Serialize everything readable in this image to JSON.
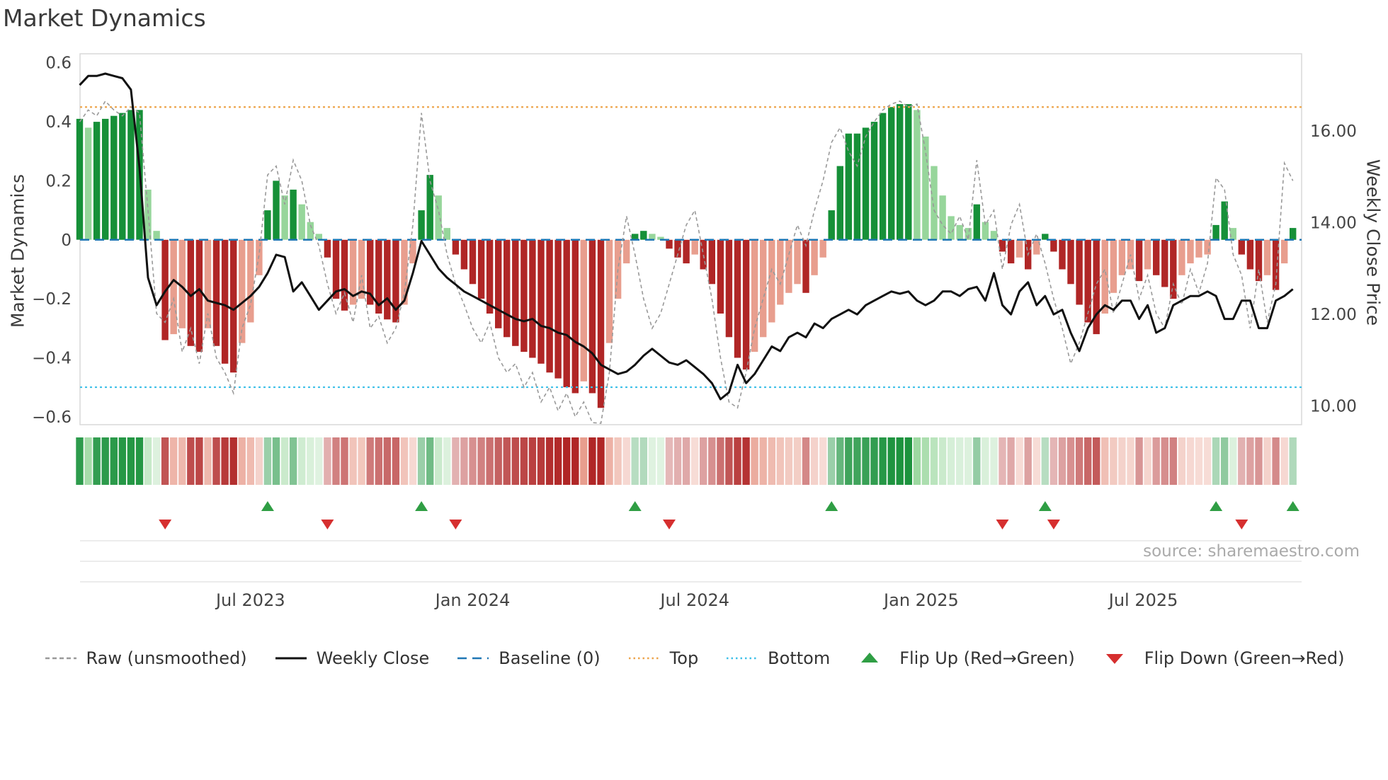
{
  "title": "Market Dynamics",
  "source": "source: sharemaestro.com",
  "colors": {
    "bar_up_strong": "#169038",
    "bar_up_weak": "#97d69b",
    "bar_down_strong": "#b02626",
    "bar_down_weak": "#e89e8e",
    "weekly_close": "#111111",
    "raw": "#999999",
    "baseline": "#1f77b4",
    "top": "#eda54c",
    "bottom": "#3fc0e8",
    "flip_up": "#2f9e44",
    "flip_down": "#d62f2f",
    "frame": "#d9d9d9",
    "grid": "#e6e6e6"
  },
  "legend": [
    {
      "label": "Raw (unsmoothed)",
      "symbol": "dashed-line",
      "icon": "raw-line-icon",
      "color_key": "raw"
    },
    {
      "label": "Weekly Close",
      "symbol": "solid-line",
      "icon": "weekly-close-line-icon",
      "color_key": "weekly_close"
    },
    {
      "label": "Baseline (0)",
      "symbol": "long-dash-line",
      "icon": "baseline-icon",
      "color_key": "baseline"
    },
    {
      "label": "Top",
      "symbol": "dotted-line",
      "icon": "top-line-icon",
      "color_key": "top"
    },
    {
      "label": "Bottom",
      "symbol": "dotted-line",
      "icon": "bottom-line-icon",
      "color_key": "bottom"
    },
    {
      "label": "Flip Up (Red→Green)",
      "symbol": "triangle-up",
      "icon": "flip-up-icon",
      "color_key": "flip_up"
    },
    {
      "label": "Flip Down (Green→Red)",
      "symbol": "triangle-down",
      "icon": "flip-down-icon",
      "color_key": "flip_down"
    }
  ],
  "chart_data": {
    "type": "combo",
    "components": [
      "bar",
      "line",
      "heatmap-strip",
      "flip-markers"
    ],
    "frequency": "weekly",
    "n_points": 143,
    "left_axis": {
      "label": "Market Dynamics",
      "tick_labels": [
        "0.6",
        "0.4",
        "0.2",
        "0",
        "−0.2",
        "−0.4",
        "−0.6"
      ],
      "tick_values": [
        0.6,
        0.4,
        0.2,
        0,
        -0.2,
        -0.4,
        -0.6
      ],
      "range": [
        -0.63,
        0.63
      ]
    },
    "right_axis": {
      "label": "Weekly Close Price",
      "tick_labels": [
        "16.00",
        "14.00",
        "12.00",
        "10.00"
      ],
      "tick_values": [
        16,
        14,
        12,
        10
      ],
      "range": [
        9.6,
        17.7
      ]
    },
    "x_ticks": [
      {
        "label": "Jul 2023",
        "week_index": 20
      },
      {
        "label": "Jan 2024",
        "week_index": 46
      },
      {
        "label": "Jul 2024",
        "week_index": 72
      },
      {
        "label": "Jan 2025",
        "week_index": 98.5
      },
      {
        "label": "Jul 2025",
        "week_index": 124.5
      }
    ],
    "reference_lines": {
      "baseline": 0,
      "top": 0.45,
      "bottom": -0.5
    },
    "series": {
      "oscillator": [
        0.41,
        0.38,
        0.4,
        0.41,
        0.42,
        0.43,
        0.44,
        0.44,
        0.17,
        0.03,
        -0.34,
        -0.32,
        -0.3,
        -0.36,
        -0.38,
        -0.3,
        -0.36,
        -0.42,
        -0.45,
        -0.35,
        -0.28,
        -0.12,
        0.1,
        0.2,
        0.15,
        0.17,
        0.12,
        0.06,
        0.02,
        -0.06,
        -0.2,
        -0.24,
        -0.22,
        -0.2,
        -0.22,
        -0.25,
        -0.27,
        -0.28,
        -0.22,
        -0.08,
        0.1,
        0.22,
        0.15,
        0.04,
        -0.05,
        -0.1,
        -0.15,
        -0.2,
        -0.25,
        -0.3,
        -0.33,
        -0.36,
        -0.38,
        -0.4,
        -0.42,
        -0.45,
        -0.47,
        -0.5,
        -0.52,
        -0.48,
        -0.52,
        -0.57,
        -0.35,
        -0.2,
        -0.08,
        0.02,
        0.03,
        0.02,
        0.01,
        -0.03,
        -0.06,
        -0.08,
        -0.05,
        -0.1,
        -0.15,
        -0.25,
        -0.33,
        -0.4,
        -0.44,
        -0.38,
        -0.33,
        -0.28,
        -0.22,
        -0.18,
        -0.15,
        -0.18,
        -0.12,
        -0.06,
        0.1,
        0.25,
        0.36,
        0.36,
        0.38,
        0.4,
        0.43,
        0.45,
        0.46,
        0.46,
        0.44,
        0.35,
        0.25,
        0.15,
        0.08,
        0.05,
        0.04,
        0.12,
        0.06,
        0.03,
        -0.04,
        -0.08,
        -0.06,
        -0.1,
        -0.05,
        0.02,
        -0.04,
        -0.1,
        -0.15,
        -0.22,
        -0.28,
        -0.32,
        -0.25,
        -0.18,
        -0.12,
        -0.1,
        -0.14,
        -0.1,
        -0.12,
        -0.16,
        -0.2,
        -0.12,
        -0.08,
        -0.06,
        -0.05,
        0.05,
        0.13,
        0.04,
        -0.05,
        -0.1,
        -0.14,
        -0.12,
        -0.17,
        -0.08,
        0.04
      ],
      "raw": [
        0.4,
        0.44,
        0.42,
        0.47,
        0.44,
        0.42,
        0.45,
        0.43,
        0.1,
        -0.25,
        -0.28,
        -0.2,
        -0.38,
        -0.3,
        -0.42,
        -0.25,
        -0.4,
        -0.45,
        -0.52,
        -0.3,
        -0.22,
        -0.05,
        0.22,
        0.25,
        0.12,
        0.27,
        0.2,
        0.05,
        -0.02,
        -0.15,
        -0.25,
        -0.18,
        -0.28,
        -0.12,
        -0.3,
        -0.26,
        -0.35,
        -0.3,
        -0.18,
        0.05,
        0.43,
        0.2,
        0.1,
        -0.05,
        -0.15,
        -0.22,
        -0.3,
        -0.35,
        -0.28,
        -0.4,
        -0.45,
        -0.42,
        -0.5,
        -0.45,
        -0.55,
        -0.5,
        -0.58,
        -0.52,
        -0.6,
        -0.55,
        -0.62,
        -0.65,
        -0.45,
        -0.1,
        0.08,
        -0.05,
        -0.2,
        -0.3,
        -0.25,
        -0.15,
        -0.05,
        0.05,
        0.1,
        -0.05,
        -0.2,
        -0.4,
        -0.55,
        -0.57,
        -0.45,
        -0.3,
        -0.2,
        -0.1,
        -0.15,
        -0.05,
        0.05,
        -0.02,
        0.1,
        0.2,
        0.33,
        0.38,
        0.3,
        0.25,
        0.35,
        0.4,
        0.44,
        0.46,
        0.47,
        0.45,
        0.46,
        0.3,
        0.1,
        0.05,
        0.02,
        0.08,
        0.0,
        0.27,
        0.05,
        0.1,
        -0.1,
        0.05,
        0.12,
        -0.05,
        0.02,
        -0.08,
        -0.2,
        -0.3,
        -0.42,
        -0.35,
        -0.25,
        -0.15,
        -0.1,
        -0.25,
        -0.15,
        -0.05,
        -0.2,
        -0.12,
        -0.25,
        -0.3,
        -0.15,
        -0.22,
        -0.1,
        -0.18,
        -0.08,
        0.21,
        0.17,
        -0.05,
        -0.12,
        -0.3,
        -0.1,
        -0.28,
        -0.15,
        0.26,
        0.2
      ],
      "weekly_close": [
        17.0,
        17.2,
        17.2,
        17.25,
        17.2,
        17.15,
        16.9,
        15.2,
        12.8,
        12.2,
        12.5,
        12.75,
        12.6,
        12.4,
        12.55,
        12.3,
        12.25,
        12.2,
        12.1,
        12.25,
        12.4,
        12.6,
        12.9,
        13.3,
        13.25,
        12.5,
        12.7,
        12.4,
        12.1,
        12.3,
        12.5,
        12.55,
        12.4,
        12.5,
        12.45,
        12.2,
        12.35,
        12.1,
        12.3,
        12.9,
        13.6,
        13.3,
        13.0,
        12.8,
        12.65,
        12.5,
        12.4,
        12.3,
        12.2,
        12.1,
        12.0,
        11.9,
        11.85,
        11.9,
        11.75,
        11.7,
        11.6,
        11.55,
        11.4,
        11.3,
        11.15,
        10.9,
        10.8,
        10.7,
        10.75,
        10.9,
        11.1,
        11.25,
        11.1,
        10.95,
        10.9,
        11.0,
        10.85,
        10.7,
        10.5,
        10.15,
        10.3,
        10.9,
        10.5,
        10.7,
        11.0,
        11.3,
        11.2,
        11.5,
        11.6,
        11.5,
        11.8,
        11.7,
        11.9,
        12.0,
        12.1,
        12.0,
        12.2,
        12.3,
        12.4,
        12.5,
        12.45,
        12.5,
        12.3,
        12.2,
        12.3,
        12.5,
        12.5,
        12.4,
        12.55,
        12.6,
        12.3,
        12.9,
        12.2,
        12.0,
        12.5,
        12.7,
        12.2,
        12.4,
        12.0,
        12.1,
        11.6,
        11.2,
        11.7,
        12.0,
        12.2,
        12.1,
        12.3,
        12.3,
        11.9,
        12.2,
        11.6,
        11.7,
        12.2,
        12.3,
        12.4,
        12.4,
        12.5,
        12.4,
        11.9,
        11.9,
        12.3,
        12.3,
        11.7,
        11.7,
        12.3,
        12.4,
        12.55
      ]
    },
    "flip_up_week_indices": [
      22,
      40,
      65,
      88,
      113,
      133,
      142
    ],
    "flip_down_week_indices": [
      10,
      29,
      44,
      69,
      108,
      114,
      136
    ]
  }
}
